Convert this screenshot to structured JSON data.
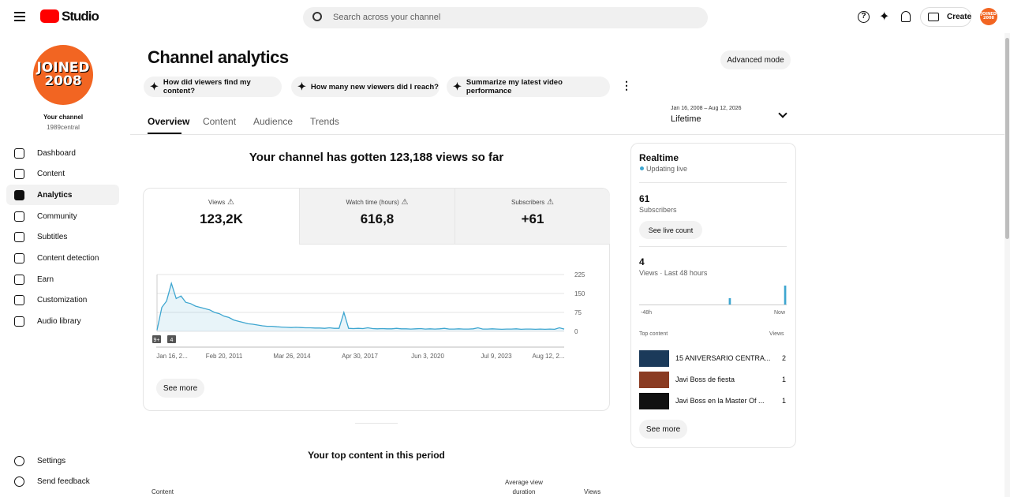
{
  "header": {
    "logo": "Studio",
    "search_placeholder": "Search across your channel",
    "create": "Create",
    "avatar": [
      "JOINED",
      "2008"
    ]
  },
  "sidebar": {
    "avatar": [
      "JOINED",
      "2008"
    ],
    "channel_title": "Your channel",
    "channel_handle": "1989central",
    "nav": [
      "Dashboard",
      "Content",
      "Analytics",
      "Community",
      "Subtitles",
      "Content detection",
      "Earn",
      "Customization",
      "Audio library"
    ],
    "footer": [
      "Settings",
      "Send feedback"
    ]
  },
  "page": {
    "title": "Channel analytics",
    "advanced": "Advanced mode",
    "prompts": [
      "How did viewers find my content?",
      "How many new viewers did I reach?",
      "Summarize my latest video performance"
    ],
    "tabs": [
      "Overview",
      "Content",
      "Audience",
      "Trends"
    ],
    "date_range": "Jan 16, 2008 – Aug 12, 2026",
    "period": "Lifetime"
  },
  "overview": {
    "headline": "Your channel has gotten 123,188 views so far",
    "metrics": [
      {
        "label": "Views",
        "value": "123,2K"
      },
      {
        "label": "Watch time (hours)",
        "value": "616,8"
      },
      {
        "label": "Subscribers",
        "value": "+61"
      }
    ],
    "chart": {
      "type": "line",
      "color": "#3ea6d0",
      "ylim": [
        0,
        225
      ],
      "yticks": [
        0,
        75,
        150,
        225
      ],
      "x_labels": [
        "Jan 16, 2...",
        "Feb 20, 2011",
        "Mar 26, 2014",
        "Apr 30, 2017",
        "Jun 3, 2020",
        "Jul 9, 2023",
        "Aug 12, 2..."
      ],
      "values": [
        5,
        95,
        120,
        190,
        130,
        140,
        115,
        110,
        100,
        95,
        90,
        85,
        75,
        70,
        60,
        55,
        45,
        40,
        35,
        30,
        28,
        25,
        22,
        20,
        20,
        18,
        17,
        16,
        15,
        16,
        15,
        14,
        14,
        13,
        13,
        12,
        14,
        12,
        12,
        75,
        12,
        11,
        12,
        11,
        14,
        11,
        10,
        11,
        10,
        10,
        12,
        10,
        10,
        9,
        10,
        11,
        9,
        10,
        9,
        10,
        12,
        9,
        9,
        10,
        9,
        9,
        10,
        14,
        9,
        9,
        10,
        9,
        8,
        9,
        9,
        10,
        8,
        9,
        9,
        8,
        9,
        8,
        9,
        8,
        14,
        9
      ],
      "badges": [
        "9+",
        "4"
      ]
    },
    "see_more": "See more",
    "top_content_title": "Your top content in this period",
    "columns": [
      "Content",
      "Average view duration",
      "Views"
    ]
  },
  "realtime": {
    "title": "Realtime",
    "status": "Updating live",
    "subscribers": "61",
    "subscribers_label": "Subscribers",
    "live_count": "See live count",
    "views": "4",
    "views_label": "Views · Last 48 hours",
    "bars": [
      0,
      0,
      0,
      0,
      0,
      0,
      0,
      0,
      0,
      0,
      0,
      0,
      0,
      0,
      0,
      0,
      0,
      0,
      0,
      0,
      0,
      0,
      0,
      0,
      0,
      0,
      0,
      0,
      0,
      1,
      0,
      0,
      0,
      0,
      0,
      0,
      0,
      0,
      0,
      0,
      0,
      0,
      0,
      0,
      0,
      0,
      0,
      3
    ],
    "axis": [
      "-48h",
      "Now"
    ],
    "top_content": "Top content",
    "views_col": "Views",
    "rows": [
      {
        "title": "15 ANIVERSARIO CENTRA...",
        "views": "2"
      },
      {
        "title": "Javi Boss de fiesta",
        "views": "1"
      },
      {
        "title": "Javi Boss en la Master Of ...",
        "views": "1"
      }
    ],
    "see_more": "See more"
  }
}
